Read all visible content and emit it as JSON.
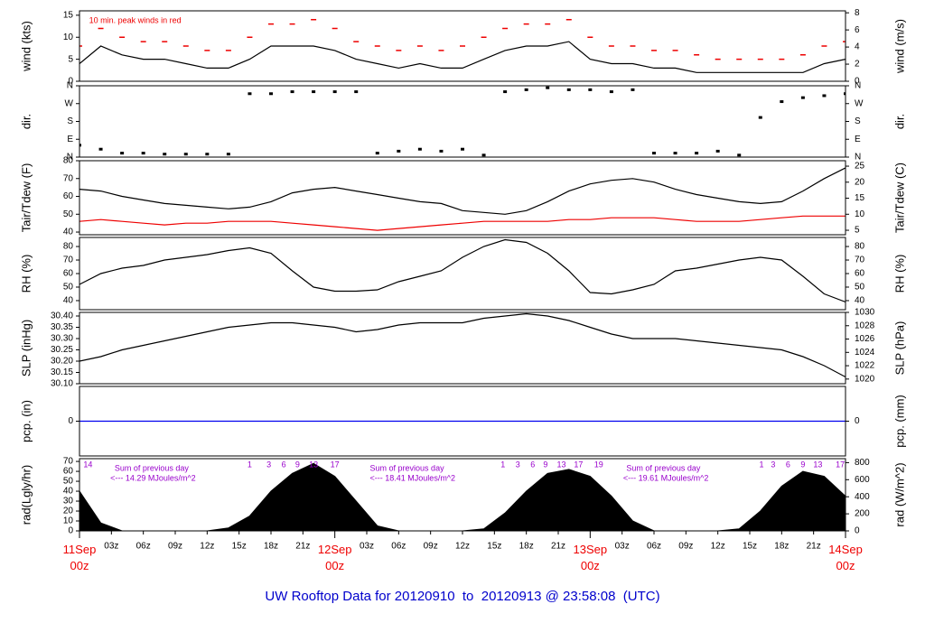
{
  "title": "UW Rooftop Data for 20120910  to  20120913 @ 23:58:08  (UTC)",
  "chart_data": [
    {
      "type": "line",
      "ylabel": "wind (kts)",
      "y2label": "wind (m/s)",
      "xlim": [
        0,
        72
      ],
      "ylim": [
        0,
        16
      ],
      "yticks": [
        0,
        5,
        10,
        15
      ],
      "y2lim": [
        0,
        8.23
      ],
      "y2ticks": [
        0,
        2,
        4,
        6,
        8
      ],
      "annotations": [
        {
          "x": 0.9,
          "text": "10 min. peak winds in red"
        }
      ],
      "annotation_color": "#ee0000",
      "x": [
        0,
        2,
        4,
        6,
        8,
        10,
        12,
        14,
        16,
        18,
        20,
        22,
        24,
        26,
        28,
        30,
        32,
        34,
        36,
        38,
        40,
        42,
        44,
        46,
        48,
        50,
        52,
        54,
        56,
        58,
        60,
        62,
        64,
        66,
        68,
        70,
        72
      ],
      "series": [
        {
          "color": "#000000",
          "values": [
            4,
            8,
            6,
            5,
            5,
            4,
            3,
            3,
            5,
            8,
            8,
            8,
            7,
            5,
            4,
            3,
            4,
            3,
            3,
            5,
            7,
            8,
            8,
            9,
            5,
            4,
            4,
            3,
            3,
            2,
            2,
            2,
            2,
            2,
            2,
            4,
            5
          ]
        },
        {
          "color": "#ee0000",
          "marker": "dash",
          "values": [
            8,
            12,
            10,
            9,
            9,
            8,
            7,
            7,
            10,
            13,
            13,
            14,
            12,
            9,
            8,
            7,
            8,
            7,
            8,
            10,
            12,
            13,
            13,
            14,
            10,
            8,
            8,
            7,
            7,
            6,
            5,
            5,
            5,
            5,
            6,
            8,
            9
          ]
        }
      ]
    },
    {
      "type": "scatter",
      "ylabel": "dir.",
      "y2label": "dir.",
      "xlim": [
        0,
        72
      ],
      "ylim": [
        0,
        360
      ],
      "yticks": [
        {
          "value": 0,
          "label": "N"
        },
        {
          "value": 90,
          "label": "E"
        },
        {
          "value": 180,
          "label": "S"
        },
        {
          "value": 270,
          "label": "W"
        },
        {
          "value": 360,
          "label": "N"
        }
      ],
      "y2lim": [
        0,
        360
      ],
      "y2ticks": [
        {
          "value": 0,
          "label": "N"
        },
        {
          "value": 90,
          "label": "E"
        },
        {
          "value": 180,
          "label": "S"
        },
        {
          "value": 270,
          "label": "W"
        },
        {
          "value": 360,
          "label": "N"
        }
      ],
      "x": [
        0,
        2,
        4,
        6,
        8,
        10,
        12,
        14,
        16,
        18,
        20,
        22,
        24,
        26,
        28,
        30,
        32,
        34,
        36,
        38,
        40,
        42,
        44,
        46,
        48,
        50,
        52,
        54,
        56,
        58,
        60,
        62,
        64,
        66,
        68,
        70,
        72
      ],
      "series": [
        {
          "color": "#000000",
          "values": [
            60,
            40,
            20,
            20,
            15,
            15,
            15,
            15,
            320,
            320,
            330,
            330,
            330,
            330,
            20,
            30,
            40,
            30,
            40,
            10,
            330,
            340,
            350,
            340,
            340,
            330,
            340,
            20,
            20,
            20,
            30,
            10,
            200,
            280,
            300,
            310,
            320
          ]
        }
      ]
    },
    {
      "type": "line",
      "ylabel": "Tair/Tdew (F)",
      "y2label": "Tair/Tdew (C)",
      "xlim": [
        0,
        72
      ],
      "ylim": [
        38.5,
        80
      ],
      "yticks": [
        40,
        50,
        60,
        70,
        80
      ],
      "y2lim": [
        3.6,
        26.7
      ],
      "y2ticks": [
        5,
        10,
        15,
        20,
        25
      ],
      "x": [
        0,
        2,
        4,
        6,
        8,
        10,
        12,
        14,
        16,
        18,
        20,
        22,
        24,
        26,
        28,
        30,
        32,
        34,
        36,
        38,
        40,
        42,
        44,
        46,
        48,
        50,
        52,
        54,
        56,
        58,
        60,
        62,
        64,
        66,
        68,
        70,
        72
      ],
      "series": [
        {
          "color": "#000000",
          "values": [
            64,
            63,
            60,
            58,
            56,
            55,
            54,
            53,
            54,
            57,
            62,
            64,
            65,
            63,
            61,
            59,
            57,
            56,
            52,
            51,
            50,
            52,
            57,
            63,
            67,
            69,
            70,
            68,
            64,
            61,
            59,
            57,
            56,
            57,
            63,
            70,
            76
          ]
        },
        {
          "color": "#ee0000",
          "values": [
            46,
            47,
            46,
            45,
            44,
            45,
            45,
            46,
            46,
            46,
            45,
            44,
            43,
            42,
            41,
            42,
            43,
            44,
            45,
            46,
            46,
            46,
            46,
            47,
            47,
            48,
            48,
            48,
            47,
            46,
            46,
            46,
            47,
            48,
            49,
            49,
            49
          ]
        }
      ]
    },
    {
      "type": "line",
      "ylabel": "RH (%)",
      "y2label": "RH (%)",
      "xlim": [
        0,
        72
      ],
      "ylim": [
        33.3,
        86.7
      ],
      "yticks": [
        40,
        50,
        60,
        70,
        80
      ],
      "y2lim": [
        33.3,
        86.7
      ],
      "y2ticks": [
        40,
        50,
        60,
        70,
        80
      ],
      "x": [
        0,
        2,
        4,
        6,
        8,
        10,
        12,
        14,
        16,
        18,
        20,
        22,
        24,
        26,
        28,
        30,
        32,
        34,
        36,
        38,
        40,
        42,
        44,
        46,
        48,
        50,
        52,
        54,
        56,
        58,
        60,
        62,
        64,
        66,
        68,
        70,
        72
      ],
      "series": [
        {
          "color": "#000000",
          "values": [
            52,
            60,
            64,
            66,
            70,
            72,
            74,
            77,
            79,
            75,
            62,
            50,
            47,
            47,
            48,
            54,
            58,
            62,
            72,
            80,
            85,
            83,
            75,
            62,
            46,
            45,
            48,
            52,
            62,
            64,
            67,
            70,
            72,
            70,
            58,
            45,
            39
          ]
        }
      ]
    },
    {
      "type": "line",
      "ylabel": "SLP (inHg)",
      "y2label": "SLP (hPa)",
      "xlim": [
        0,
        72
      ],
      "ylim": [
        30.1,
        30.416
      ],
      "yticks": [
        {
          "value": 30.1,
          "label": "30.10"
        },
        {
          "value": 30.15,
          "label": "30.15"
        },
        {
          "value": 30.2,
          "label": "30.20"
        },
        {
          "value": 30.25,
          "label": "30.25"
        },
        {
          "value": 30.3,
          "label": "30.30"
        },
        {
          "value": 30.35,
          "label": "30.35"
        },
        {
          "value": 30.4,
          "label": "30.40"
        }
      ],
      "y2lim": [
        1019.3,
        1030.0
      ],
      "y2ticks": [
        1020,
        1022,
        1024,
        1026,
        1028,
        1030
      ],
      "x": [
        0,
        2,
        4,
        6,
        8,
        10,
        12,
        14,
        16,
        18,
        20,
        22,
        24,
        26,
        28,
        30,
        32,
        34,
        36,
        38,
        40,
        42,
        44,
        46,
        48,
        50,
        52,
        54,
        56,
        58,
        60,
        62,
        64,
        66,
        68,
        70,
        72
      ],
      "series": [
        {
          "color": "#000000",
          "values": [
            30.2,
            30.22,
            30.25,
            30.27,
            30.29,
            30.31,
            30.33,
            30.35,
            30.36,
            30.37,
            30.37,
            30.36,
            30.35,
            30.33,
            30.34,
            30.36,
            30.37,
            30.37,
            30.37,
            30.39,
            30.4,
            30.41,
            30.4,
            30.38,
            30.35,
            30.32,
            30.3,
            30.3,
            30.3,
            30.29,
            30.28,
            30.27,
            30.26,
            30.25,
            30.22,
            30.18,
            30.13
          ]
        }
      ]
    },
    {
      "type": "line",
      "ylabel": "pcp. (in)",
      "y2label": "pcp. (mm)",
      "xlim": [
        0,
        72
      ],
      "ylim": [
        -1,
        1
      ],
      "yticks": [
        0
      ],
      "y2lim": [
        -1,
        1
      ],
      "y2ticks": [
        0
      ],
      "x": [
        0,
        72
      ],
      "series": [
        {
          "color": "#0000ee",
          "values": [
            0,
            0
          ]
        }
      ]
    },
    {
      "type": "area",
      "ylabel": "rad(Lgly/hr)",
      "y2label": "rad (W/m^2)",
      "xlim": [
        0,
        72
      ],
      "ylim": [
        0,
        72.8
      ],
      "yticks": [
        0,
        10,
        20,
        30,
        40,
        50,
        60,
        70
      ],
      "y2lim": [
        0,
        846.7
      ],
      "y2ticks": [
        0,
        200,
        400,
        600,
        800
      ],
      "annotation_color": "#9900cc",
      "annotations": [
        {
          "x": 3.3,
          "text": "Sum of previous day"
        },
        {
          "x": 2.9,
          "text": "<--- 14.29 MJoules/m^2"
        },
        {
          "x": 27.3,
          "text": "Sum of previous day"
        },
        {
          "x": 27.3,
          "text": "<--- 18.41 MJoules/m^2"
        },
        {
          "x": 51.4,
          "text": "Sum of previous day"
        },
        {
          "x": 51.1,
          "text": "<--- 19.61 MJoules/m^2"
        }
      ],
      "x2ticks": [
        {
          "value": 0.8,
          "label": "14"
        },
        {
          "value": 16.0,
          "label": "1"
        },
        {
          "value": 17.8,
          "label": "3"
        },
        {
          "value": 19.2,
          "label": "6"
        },
        {
          "value": 20.5,
          "label": "9"
        },
        {
          "value": 22.0,
          "label": "13"
        },
        {
          "value": 24.0,
          "label": "17"
        },
        {
          "value": 39.8,
          "label": "1"
        },
        {
          "value": 41.2,
          "label": "3"
        },
        {
          "value": 42.6,
          "label": "6"
        },
        {
          "value": 43.8,
          "label": "9"
        },
        {
          "value": 45.3,
          "label": "13"
        },
        {
          "value": 46.9,
          "label": "17"
        },
        {
          "value": 48.8,
          "label": "19"
        },
        {
          "value": 64.1,
          "label": "1"
        },
        {
          "value": 65.2,
          "label": "3"
        },
        {
          "value": 66.6,
          "label": "6"
        },
        {
          "value": 68.0,
          "label": "9"
        },
        {
          "value": 69.4,
          "label": "13"
        },
        {
          "value": 71.5,
          "label": "17"
        }
      ],
      "xticks": [
        {
          "value": 0,
          "label": "11Sep 00z"
        },
        {
          "value": 3,
          "label": "03z"
        },
        {
          "value": 6,
          "label": "06z"
        },
        {
          "value": 9,
          "label": "09z"
        },
        {
          "value": 12,
          "label": "12z"
        },
        {
          "value": 15,
          "label": "15z"
        },
        {
          "value": 18,
          "label": "18z"
        },
        {
          "value": 21,
          "label": "21z"
        },
        {
          "value": 24,
          "label": "12Sep 00z"
        },
        {
          "value": 27,
          "label": "03z"
        },
        {
          "value": 30,
          "label": "06z"
        },
        {
          "value": 33,
          "label": "09z"
        },
        {
          "value": 36,
          "label": "12z"
        },
        {
          "value": 39,
          "label": "15z"
        },
        {
          "value": 42,
          "label": "18z"
        },
        {
          "value": 45,
          "label": "21z"
        },
        {
          "value": 48,
          "label": "13Sep 00z"
        },
        {
          "value": 51,
          "label": "03z"
        },
        {
          "value": 54,
          "label": "06z"
        },
        {
          "value": 57,
          "label": "09z"
        },
        {
          "value": 60,
          "label": "12z"
        },
        {
          "value": 63,
          "label": "15z"
        },
        {
          "value": 66,
          "label": "18z"
        },
        {
          "value": 69,
          "label": "21z"
        },
        {
          "value": 72,
          "label": "14Sep 00z"
        }
      ],
      "major_tick_every": 24,
      "major_tick_color": "#ee0000",
      "x": [
        0,
        2,
        4,
        6,
        8,
        10,
        12,
        14,
        16,
        18,
        20,
        22,
        24,
        26,
        28,
        30,
        32,
        34,
        36,
        38,
        40,
        42,
        44,
        46,
        48,
        50,
        52,
        54,
        56,
        58,
        60,
        62,
        64,
        66,
        68,
        70,
        72
      ],
      "series": [
        {
          "color": "#000000",
          "values": [
            40,
            8,
            0,
            0,
            0,
            0,
            0,
            3,
            15,
            40,
            58,
            68,
            55,
            30,
            5,
            0,
            0,
            0,
            0,
            2,
            18,
            40,
            58,
            62,
            55,
            35,
            10,
            0,
            0,
            0,
            0,
            2,
            20,
            45,
            60,
            55,
            35
          ]
        }
      ]
    }
  ]
}
